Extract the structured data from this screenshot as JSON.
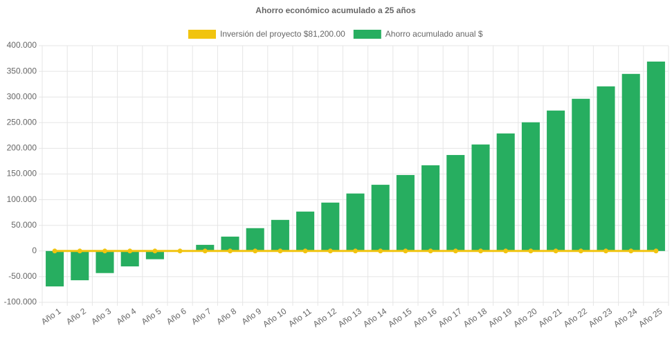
{
  "chart_data": {
    "type": "bar",
    "title": "Ahorro económico acumulado a 25 años",
    "categories": [
      "Año 1",
      "Año 2",
      "Año 3",
      "Año 4",
      "Año 5",
      "Año 6",
      "Año 7",
      "Año 8",
      "Año 9",
      "Año 10",
      "Año 11",
      "Año 12",
      "Año 13",
      "Año 14",
      "Año 15",
      "Año 16",
      "Año 17",
      "Año 18",
      "Año 19",
      "Año 20",
      "Año 21",
      "Año 22",
      "Año 23",
      "Año 24",
      "Año 25"
    ],
    "series": [
      {
        "name": "Inversión del proyecto $81,200.00",
        "type": "line",
        "color": "#f1c40f",
        "values": [
          0,
          0,
          0,
          0,
          0,
          0,
          0,
          0,
          0,
          0,
          0,
          0,
          0,
          0,
          0,
          0,
          0,
          0,
          0,
          0,
          0,
          0,
          0,
          0,
          0
        ]
      },
      {
        "name": "Ahorro acumulado anual $",
        "type": "bar",
        "color": "#27ae60",
        "values": [
          -69000,
          -57000,
          -43000,
          -30000,
          -16000,
          0,
          12000,
          28000,
          44500,
          60600,
          76800,
          94300,
          112000,
          129000,
          148000,
          167000,
          187000,
          207500,
          229000,
          250700,
          273600,
          296500,
          320700,
          345000,
          369000
        ]
      }
    ],
    "ylim": [
      -100000,
      400000
    ],
    "yticks": [
      {
        "value": -100000,
        "label": "-100.000"
      },
      {
        "value": -50000,
        "label": "-50.000"
      },
      0,
      {
        "value": 50000,
        "label": "50.000"
      },
      {
        "value": 100000,
        "label": "100.000"
      },
      {
        "value": 150000,
        "label": "150.000"
      },
      {
        "value": 200000,
        "label": "200.000"
      },
      {
        "value": 250000,
        "label": "250.000"
      },
      {
        "value": 300000,
        "label": "300.000"
      },
      {
        "value": 350000,
        "label": "350.000"
      },
      {
        "value": 400000,
        "label": "400.000"
      }
    ],
    "grid": true
  }
}
